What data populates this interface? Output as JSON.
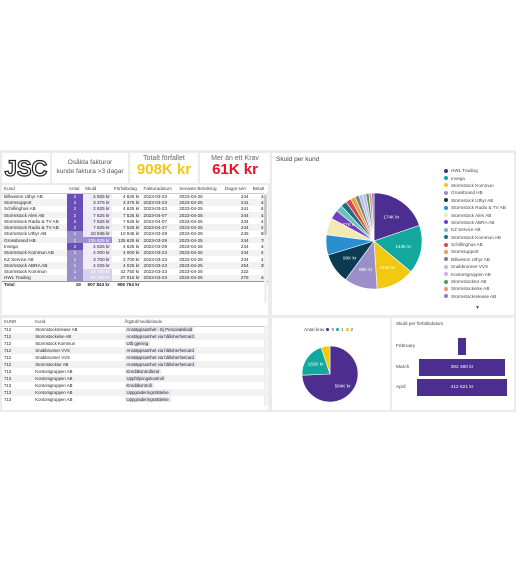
{
  "kpi_text": {
    "line1": "Osålda fakturor",
    "line2": "kunde faktura >3 dagar"
  },
  "kpi1": {
    "label": "Totalt förfallet",
    "value": "908K kr"
  },
  "kpi2": {
    "label": "Mer än ett Krav",
    "value": "61K kr"
  },
  "logo": {
    "text": "JSC"
  },
  "main_table": {
    "headers": [
      "Kund",
      "Antal",
      "Skuld",
      "Förfallodag",
      "Fakturadatum",
      "Senaste Betalning",
      "Dagar sen",
      "Betalt"
    ],
    "rows": [
      [
        "Billweson Uthyr AB",
        "2",
        "4 825 kr",
        "4 825 kr",
        "2023-03-23",
        "2023-04-25",
        "244",
        "44"
      ],
      [
        "Stormsupport",
        "2",
        "3 375 kr",
        "3 375 kr",
        "2023-03-23",
        "2023-04-25",
        "241",
        "44"
      ],
      [
        "Schillinghus AB",
        "2",
        "2 625 kr",
        "4 625 kr",
        "2023-03-23",
        "2023-04-25",
        "241",
        "61"
      ],
      [
        "Stormstock Aleri AB",
        "2",
        "7 525 kr",
        "7 525 kr",
        "2023-04-07",
        "2023-04-25",
        "244",
        "44"
      ],
      [
        "Stormstock Radio & TV AB",
        "2",
        "7 525 kr",
        "7 525 kr",
        "2023-04-07",
        "2023-04-25",
        "244",
        "41"
      ],
      [
        "Stormstock Radio & TV AB",
        "2",
        "7 525 kr",
        "7 525 kr",
        "2023-04-27",
        "2023-04-25",
        "244",
        "41"
      ],
      [
        "Stormstock Uthyr AB",
        "1",
        "10 945 kr",
        "10 945 kr",
        "2023-03-29",
        "2023-04-29",
        "245",
        "69"
      ],
      [
        "Grossbrand HB",
        "1",
        "135 625 kr",
        "135 625 kr",
        "2023-03-29",
        "2023-04-25",
        "244",
        "78"
      ],
      [
        "Invega",
        "2",
        "4 625 kr",
        "4 625 kr",
        "2023-03-29",
        "2023-04-25",
        "244",
        "44"
      ],
      [
        "Stormstock Kommun AB",
        "1",
        "4 000 kr",
        "4 000 kr",
        "2023-03-23",
        "2023-04-25",
        "244",
        "41"
      ],
      [
        "KZ Service AB",
        "1",
        "3 700 kr",
        "3 700 kr",
        "2023-03-23",
        "2023-04-25",
        "244",
        "41"
      ],
      [
        "Stormstock ABRA AB",
        "1",
        "4 025 kr",
        "4 025 kr",
        "2023-03-23",
        "2023-04-25",
        "254",
        "39"
      ],
      [
        "Stormstock Kommun",
        "1",
        "42 750 kr",
        "42 750 kr",
        "2023-03-23",
        "2023-04-25",
        "222",
        "7"
      ],
      [
        "HWL Trading",
        "1",
        "44 250 kr",
        "37 015 kr",
        "2023-03-23",
        "2023-04-25",
        "275",
        "44"
      ]
    ],
    "total": [
      "Total",
      "19",
      "907 843 kr",
      "906 764 kr",
      "",
      "",
      "",
      ""
    ]
  },
  "action_list": {
    "headers": [
      "KUNR",
      "Kund",
      "Åtgärd/meddelande"
    ],
    "rows": [
      [
        "712",
        "Stormstockrelease AB",
        "Anstäppsamhet - Ej Personalskuld"
      ],
      [
        "712",
        "Stormstockelse AB",
        "Anstäppsamhet via hålloherhetcard"
      ],
      [
        "712",
        "Stormstock Kommun",
        "Utb gjening"
      ],
      [
        "712",
        "Snabbrunner VVS",
        "Anstäppsamhet via hålloherhetcard"
      ],
      [
        "712",
        "Snabbrunner VVS",
        "Anstäppsamhet via hålloherhetcard"
      ],
      [
        "712",
        "Stormstocktor AB",
        "Anstäppsamhet via hålloherhetcard"
      ],
      [
        "713",
        "Kontorsgruppen AB",
        "Kreditkontrollerat"
      ],
      [
        "713",
        "Kontorsgruppen AB",
        "Uppföljningskontroll"
      ],
      [
        "713",
        "Kontorsgruppen AB",
        "Kreditkontroll"
      ],
      [
        "713",
        "Kontorsgruppen AB",
        "Uppgraderingsrättelse"
      ],
      [
        "713",
        "Kontorsgruppen AB",
        "Uppgraderingsrättelse"
      ]
    ]
  },
  "pie_tile": {
    "title": "Skuld per kund"
  },
  "donut_tile": {
    "legend_title": "Antal krav",
    "legend_items": [
      "0",
      "1",
      "2"
    ]
  },
  "funnel_tile": {
    "title": "Skuld per förfallodatum",
    "labels": [
      "February",
      "March",
      "April"
    ],
    "bar_labels": [
      "",
      "392 480 kr",
      "412 621 kr"
    ]
  },
  "chart_data": [
    {
      "type": "pie",
      "title": "Skuld per kund",
      "labels": [
        "HWL Trading",
        "Invega",
        "Stormstock Kommun",
        "Grossbrand HB",
        "Stormstock Uthyr AB",
        "Stormstock Radio & TV AB",
        "Stormstock Aleri AB",
        "Stormstock ABRA AB",
        "KZ Service AB",
        "Stormstock Kommun AB",
        "Schillinghus AB",
        "Stormsupport",
        "Billweson Uthyr AB",
        "Snabbrunner VVS",
        "Kontorsgruppen AB",
        "Stormstocktor AB",
        "Stormstockelse AB",
        "Stormstockrelease AB"
      ],
      "slice_labels": [
        "174K kr",
        "144K kr",
        "114K kr",
        "98K kr",
        "90K kr",
        "",
        "",
        "27K kr",
        "",
        "",
        "",
        "",
        "",
        "",
        "",
        "",
        "",
        ""
      ],
      "values": [
        174,
        144,
        114,
        98,
        90,
        60,
        50,
        27,
        20,
        18,
        16,
        14,
        12,
        11,
        10,
        9,
        8,
        7
      ],
      "colors": [
        "#4b2e8f",
        "#12a89d",
        "#f2c811",
        "#9b8fc9",
        "#0b3a53",
        "#2b8ecf",
        "#f1e9b6",
        "#6f3fbf",
        "#69c3b9",
        "#1f6e7d",
        "#d64550",
        "#e8a33d",
        "#7f7f7f",
        "#a7c5e8",
        "#c9b3e6",
        "#4e9a5e",
        "#f28b82",
        "#8e7ccf"
      ],
      "legend_position": "right"
    },
    {
      "type": "pie",
      "title": "",
      "labels": [
        "0",
        "1",
        "2"
      ],
      "slice_labels": [
        "584K kr",
        "162K kr",
        ""
      ],
      "values": [
        584,
        162,
        40
      ],
      "colors": [
        "#4b2e8f",
        "#12a89d",
        "#f2c811"
      ],
      "legend_position": "top"
    },
    {
      "type": "bar",
      "title": "Skuld per förfallodatum",
      "categories": [
        "February",
        "March",
        "April"
      ],
      "values": [
        50,
        392480,
        412621
      ],
      "colors": [
        "#4b2e8f"
      ]
    }
  ]
}
